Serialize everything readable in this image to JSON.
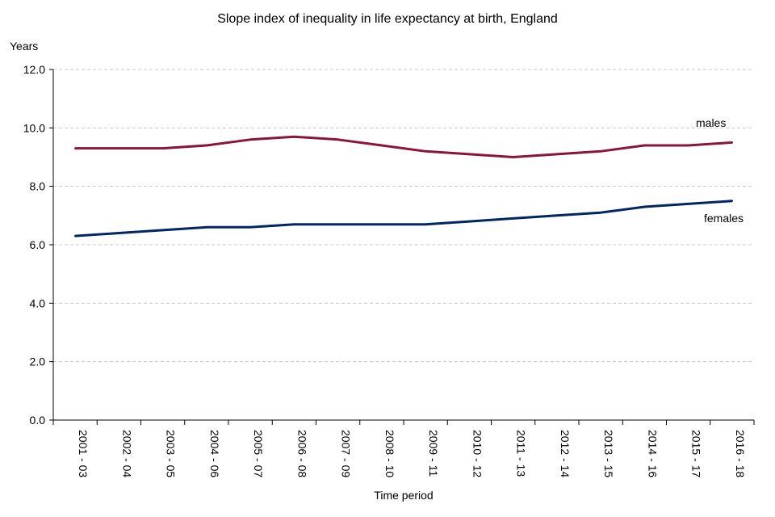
{
  "chart_data": {
    "type": "line",
    "title": "Slope index of inequality in life expectancy at birth, England",
    "ylabel": "Years",
    "xlabel": "Time period",
    "ylim": [
      0,
      12
    ],
    "yticks": [
      "0.0",
      "2.0",
      "4.0",
      "6.0",
      "8.0",
      "10.0",
      "12.0"
    ],
    "grid": "horizontal dashed",
    "legend": "direct labels at line ends",
    "categories": [
      "2001 - 03",
      "2002 - 04",
      "2003 - 05",
      "2004 - 06",
      "2005 - 07",
      "2006 - 08",
      "2007 - 09",
      "2008 - 10",
      "2009 - 11",
      "2010 - 12",
      "2011 - 13",
      "2012 - 14",
      "2013 - 15",
      "2014 - 16",
      "2015 - 17",
      "2016 - 18"
    ],
    "series": [
      {
        "name": "males",
        "color": "#8B1538",
        "values": [
          9.3,
          9.3,
          9.3,
          9.4,
          9.6,
          9.7,
          9.6,
          9.4,
          9.2,
          9.1,
          9.0,
          9.1,
          9.2,
          9.4,
          9.4,
          9.5
        ]
      },
      {
        "name": "females",
        "color": "#002664",
        "values": [
          6.3,
          6.4,
          6.5,
          6.6,
          6.6,
          6.7,
          6.7,
          6.7,
          6.7,
          6.8,
          6.9,
          7.0,
          7.1,
          7.3,
          7.4,
          7.5
        ]
      }
    ]
  }
}
